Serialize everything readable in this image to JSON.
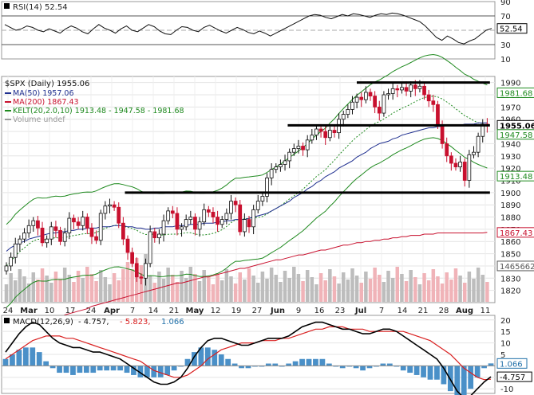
{
  "chart_data": [
    {
      "panel": "rsi",
      "type": "line",
      "title": "RSI(14) 52.54",
      "series": [
        {
          "name": "RSI(14)",
          "last_value": "52.54",
          "values": [
            58,
            54,
            50,
            52,
            56,
            54,
            50,
            48,
            52,
            49,
            46,
            52,
            56,
            53,
            48,
            45,
            52,
            58,
            53,
            50,
            46,
            52,
            56,
            50,
            48,
            53,
            58,
            55,
            49,
            45,
            44,
            50,
            55,
            54,
            50,
            48,
            54,
            57,
            53,
            49,
            46,
            50,
            54,
            51,
            47,
            45,
            49,
            46,
            42,
            46,
            50,
            54,
            58,
            62,
            66,
            70,
            72,
            71,
            68,
            66,
            69,
            72,
            70,
            73,
            72,
            70,
            68,
            71,
            73,
            72,
            74,
            73,
            71,
            68,
            65,
            62,
            56,
            48,
            40,
            36,
            42,
            38,
            33,
            31,
            35,
            38,
            44,
            50,
            52.54
          ]
        }
      ],
      "ylim": [
        10,
        90
      ],
      "y_ticks": [
        "90",
        "70",
        "50",
        "30",
        "10"
      ],
      "reference_lines": [
        70,
        50,
        30
      ]
    },
    {
      "panel": "price",
      "type": "candlestick",
      "title": "$SPX (Daily) 1955.06",
      "legend": [
        {
          "label": "MA(50) 1957.06",
          "color": "#1f2f8f"
        },
        {
          "label": "MA(200) 1867.43",
          "color": "#c8102e"
        },
        {
          "label": "KELT(20,2.0,10) 1913.48 - 1947.58 - 1981.68",
          "color": "#1f8a1f"
        },
        {
          "label": "Volume undef",
          "color": "#999999"
        }
      ],
      "closes": [
        1840,
        1847,
        1858,
        1862,
        1867,
        1873,
        1877,
        1871,
        1859,
        1862,
        1872,
        1869,
        1860,
        1867,
        1879,
        1876,
        1873,
        1880,
        1871,
        1864,
        1861,
        1883,
        1889,
        1890,
        1888,
        1875,
        1862,
        1851,
        1842,
        1831,
        1830,
        1842,
        1868,
        1863,
        1866,
        1877,
        1885,
        1883,
        1870,
        1872,
        1878,
        1880,
        1870,
        1876,
        1886,
        1884,
        1880,
        1874,
        1878,
        1883,
        1893,
        1890,
        1868,
        1878,
        1872,
        1886,
        1893,
        1897,
        1912,
        1919,
        1921,
        1923,
        1926,
        1933,
        1936,
        1938,
        1935,
        1943,
        1947,
        1952,
        1950,
        1945,
        1951,
        1949,
        1960,
        1964,
        1968,
        1974,
        1978,
        1976,
        1982,
        1979,
        1970,
        1965,
        1980,
        1981,
        1985,
        1984,
        1986,
        1983,
        1988,
        1985,
        1987,
        1980,
        1975,
        1972,
        1955,
        1940,
        1930,
        1924,
        1921,
        1925,
        1910,
        1931,
        1933,
        1946,
        1956,
        1955.06
      ],
      "ma50": [
        1852,
        1855,
        1857,
        1859,
        1860,
        1862,
        1863,
        1864,
        1865,
        1866,
        1867,
        1867,
        1868,
        1868,
        1869,
        1869,
        1870,
        1870,
        1871,
        1871,
        1871,
        1872,
        1872,
        1872,
        1873,
        1873,
        1873,
        1872,
        1872,
        1871,
        1871,
        1870,
        1870,
        1871,
        1871,
        1872,
        1872,
        1872,
        1873,
        1873,
        1873,
        1874,
        1874,
        1874,
        1875,
        1875,
        1875,
        1876,
        1876,
        1877,
        1877,
        1878,
        1878,
        1878,
        1879,
        1880,
        1881,
        1882,
        1883,
        1885,
        1887,
        1889,
        1891,
        1893,
        1896,
        1898,
        1900,
        1903,
        1905,
        1908,
        1910,
        1913,
        1915,
        1917,
        1920,
        1922,
        1924,
        1926,
        1929,
        1931,
        1933,
        1936,
        1938,
        1940,
        1941,
        1942,
        1944,
        1945,
        1947,
        1948,
        1949,
        1950,
        1951,
        1952,
        1953,
        1953,
        1954,
        1954,
        1955,
        1955,
        1955,
        1955,
        1956,
        1956,
        1956,
        1957,
        1957,
        1957.06
      ],
      "ma200": [
        1780,
        1782,
        1784,
        1786,
        1787,
        1789,
        1790,
        1792,
        1793,
        1794,
        1796,
        1797,
        1798,
        1800,
        1801,
        1802,
        1803,
        1804,
        1805,
        1807,
        1808,
        1809,
        1810,
        1811,
        1812,
        1813,
        1814,
        1815,
        1816,
        1817,
        1818,
        1819,
        1820,
        1821,
        1822,
        1823,
        1824,
        1825,
        1826,
        1826,
        1827,
        1828,
        1829,
        1830,
        1831,
        1831,
        1832,
        1833,
        1834,
        1835,
        1836,
        1837,
        1838,
        1838,
        1839,
        1840,
        1841,
        1842,
        1843,
        1844,
        1845,
        1845,
        1846,
        1847,
        1848,
        1849,
        1849,
        1850,
        1851,
        1852,
        1853,
        1853,
        1854,
        1855,
        1856,
        1857,
        1857,
        1858,
        1859,
        1859,
        1860,
        1860,
        1861,
        1861,
        1862,
        1862,
        1863,
        1863,
        1864,
        1864,
        1865,
        1865,
        1865,
        1866,
        1866,
        1866,
        1867,
        1867,
        1867,
        1867,
        1867,
        1867,
        1867,
        1867,
        1867,
        1867,
        1867,
        1867.43
      ],
      "horizontal_lines": [
        1990,
        1955,
        1900
      ],
      "ylim": [
        1810,
        1995
      ],
      "y_ticks": [
        "1990",
        "1980",
        "1970",
        "1960",
        "1950",
        "1940",
        "1930",
        "1920",
        "1910",
        "1900",
        "1890",
        "1880",
        "1870",
        "1860",
        "1850",
        "1840",
        "1830",
        "1820"
      ],
      "value_labels": [
        {
          "text": "1981.68",
          "color": "#1f8a1f",
          "y": 1981.68
        },
        {
          "text": "1955.06",
          "color": "#000000",
          "y": 1955.06,
          "bold": true
        },
        {
          "text": "1947.58",
          "color": "#1f8a1f",
          "y": 1947.58
        },
        {
          "text": "1913.48",
          "color": "#1f8a1f",
          "y": 1913.48
        },
        {
          "text": "1867.43",
          "color": "#c8102e",
          "y": 1867.43
        },
        {
          "text": "1465662",
          "color": "#555555",
          "y": 1840
        }
      ],
      "x_tick_labels": [
        "24",
        "Mar",
        "10",
        "17",
        "24",
        "Apr",
        "7",
        "14",
        "21",
        "May",
        "12",
        "19",
        "27",
        "Jun",
        "9",
        "16",
        "23",
        "Jul",
        "7",
        "14",
        "21",
        "28",
        "Aug",
        "11"
      ]
    },
    {
      "panel": "macd",
      "type": "line",
      "title": "MACD(12,26,9) - 4.757, - 5.823, 1.066",
      "title_parts": {
        "name": "MACD(12,26,9)",
        "macd": "- 4.757,",
        "signal": "- 5.823,",
        "hist": "1.066"
      },
      "macd": [
        6,
        10,
        14,
        17,
        19,
        18,
        15,
        12,
        10,
        9,
        8,
        8,
        7,
        6,
        6,
        5,
        4,
        3,
        1,
        -1,
        -3,
        -5,
        -7,
        -8,
        -8,
        -7,
        -5,
        -1,
        4,
        8,
        11,
        12,
        12,
        11,
        10,
        9,
        9,
        10,
        11,
        12,
        12,
        12,
        13,
        15,
        17,
        18,
        19,
        19,
        18,
        17,
        16,
        16,
        15,
        14,
        14,
        15,
        16,
        16,
        15,
        13,
        11,
        9,
        7,
        5,
        3,
        -1,
        -6,
        -11,
        -14,
        -13,
        -10,
        -7,
        -4.757
      ],
      "signal": [
        3,
        5,
        7,
        9,
        11,
        12,
        13,
        13,
        13,
        12,
        12,
        11,
        10,
        9,
        8,
        7,
        6,
        5,
        4,
        3,
        2,
        0,
        -2,
        -3,
        -4,
        -5,
        -5,
        -4,
        -2,
        0,
        3,
        5,
        7,
        8,
        9,
        10,
        10,
        10,
        11,
        11,
        11,
        12,
        12,
        13,
        14,
        15,
        16,
        16,
        17,
        17,
        17,
        16,
        16,
        16,
        15,
        15,
        15,
        15,
        15,
        15,
        14,
        13,
        12,
        11,
        9,
        7,
        5,
        2,
        -1,
        -3,
        -5,
        -6,
        -5.823
      ],
      "ylim": [
        -12,
        22
      ],
      "y_ticks": [
        "20",
        "15",
        "10",
        "5",
        "-5",
        "-10"
      ],
      "value_labels": [
        {
          "text": "1.066",
          "color": "#1f6fa8",
          "y": 1.066
        },
        {
          "text": "-4.757",
          "color": "#000000",
          "y": -4.757
        }
      ]
    }
  ]
}
